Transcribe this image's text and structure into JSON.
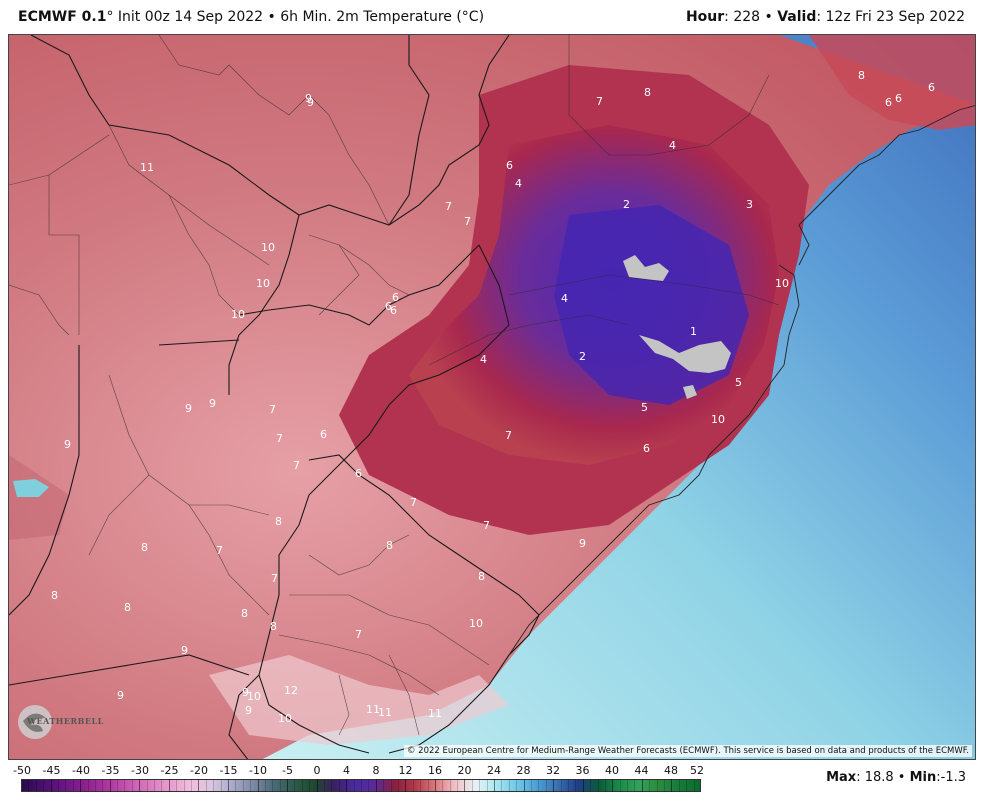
{
  "header": {
    "model": "ECMWF 0.1",
    "init_suffix": "° Init 00z 14 Sep 2022 • 6h Min. 2m Temperature (°C)",
    "hour_label": "Hour",
    "hour_value": ": 228 • ",
    "valid_label": "Valid",
    "valid_value": ": 12z Fri 23 Sep 2022"
  },
  "map": {
    "credit": "© 2022 European Centre for Medium-Range Weather Forecasts (ECMWF). This service is based on data and products of the ECMWF.",
    "logo_text": "WEATHERBELL",
    "labels": [
      {
        "t": "11"
      },
      {
        "t": "9"
      },
      {
        "t": "10"
      },
      {
        "t": "10"
      },
      {
        "t": "10"
      },
      {
        "t": "9"
      },
      {
        "t": "9"
      },
      {
        "t": "9"
      },
      {
        "t": "7"
      },
      {
        "t": "7"
      },
      {
        "t": "6"
      },
      {
        "t": "7"
      },
      {
        "t": "6"
      },
      {
        "t": "6"
      },
      {
        "t": "7"
      },
      {
        "t": "6"
      },
      {
        "t": "7"
      },
      {
        "t": "7"
      },
      {
        "t": "8"
      },
      {
        "t": "8"
      },
      {
        "t": "8"
      },
      {
        "t": "7"
      },
      {
        "t": "8"
      },
      {
        "t": "8"
      },
      {
        "t": "8"
      },
      {
        "t": "9"
      },
      {
        "t": "9"
      },
      {
        "t": "9"
      },
      {
        "t": "9"
      },
      {
        "t": "10"
      },
      {
        "t": "10"
      },
      {
        "t": "12"
      },
      {
        "t": "11"
      },
      {
        "t": "11"
      },
      {
        "t": "11"
      },
      {
        "t": "8"
      },
      {
        "t": "8"
      },
      {
        "t": "10"
      },
      {
        "t": "9"
      },
      {
        "t": "7"
      },
      {
        "t": "7"
      },
      {
        "t": "4"
      },
      {
        "t": "4"
      },
      {
        "t": "2"
      },
      {
        "t": "4"
      },
      {
        "t": "2"
      },
      {
        "t": "1"
      },
      {
        "t": "5"
      },
      {
        "t": "5"
      },
      {
        "t": "6"
      },
      {
        "t": "10"
      },
      {
        "t": "10"
      },
      {
        "t": "3"
      },
      {
        "t": "4"
      },
      {
        "t": "6"
      },
      {
        "t": "7"
      },
      {
        "t": "8"
      },
      {
        "t": "8"
      },
      {
        "t": "6"
      },
      {
        "t": "6"
      },
      {
        "t": "6"
      },
      {
        "t": "7"
      },
      {
        "t": "7"
      },
      {
        "t": "6"
      },
      {
        "t": "9"
      }
    ]
  },
  "colorbar": {
    "ticks": [
      "-50",
      "-45",
      "-40",
      "-35",
      "-30",
      "-25",
      "-20",
      "-15",
      "-10",
      "-5",
      "0",
      "4",
      "8",
      "12",
      "16",
      "20",
      "24",
      "28",
      "32",
      "36",
      "40",
      "44",
      "48",
      "52"
    ],
    "max_label": "Max",
    "max_value": ": 18.8 • ",
    "min_label": "Min",
    "min_value": ":-1.3"
  },
  "colors": {
    "warm_land": "#c9616a",
    "cold_core": "#4a2aa8",
    "ocean_near": "#bfeaf0",
    "ocean_far": "#4a7cc4"
  }
}
